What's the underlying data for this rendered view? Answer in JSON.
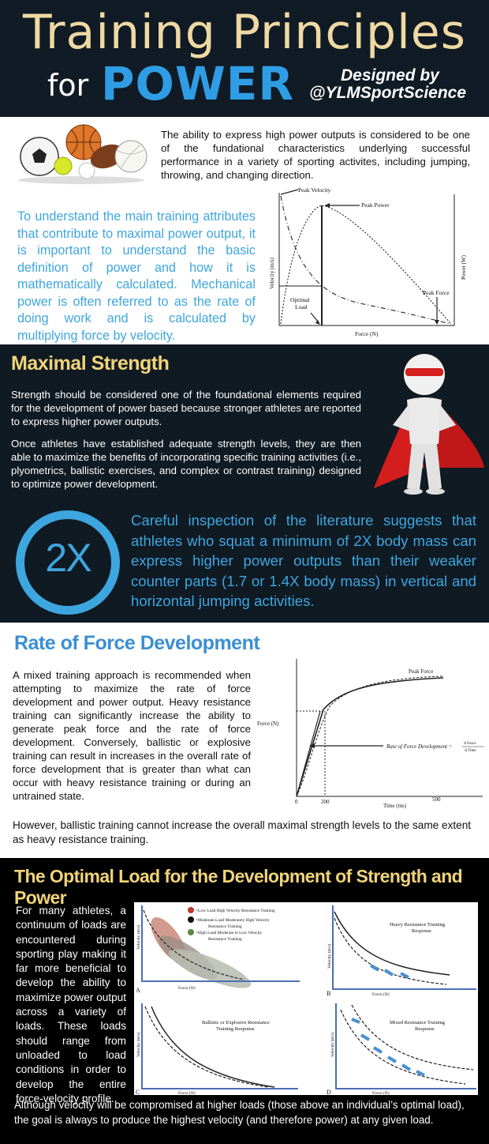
{
  "header": {
    "title_line1": "Training Principles",
    "title_for": "for",
    "title_power": "POWER",
    "designed_by": "Designed by",
    "handle": "@YLMSportScience"
  },
  "intro": {
    "text": "The ability to express high power outputs is considered to be one of the fundational characteristics underlying successful performance in a variety of sporting activites, including jumping, throwing, and changing direction.",
    "blue_text": "To understand the main training attributes that contribute to maximal power output, it is important to understand the basic definition of power and how it is mathematically calculated. Mechanical power is often referred to as the rate of doing work and is calculated by multiplying force by velocity.",
    "chart": {
      "peak_velocity": "Peak Velocity",
      "peak_power": "Peak Power",
      "peak_force": "Peak Force",
      "optimal_load_1": "Optimal",
      "optimal_load_2": "Load",
      "xlabel": "Force (N)",
      "ylabel_left": "Velocity (m/s)",
      "ylabel_right": "Power (W)"
    }
  },
  "strength": {
    "heading": "Maximal Strength",
    "p1": "Strength should be considered one of the foundational elements required for the development of power based because stronger athletes are reported to express higher power outputs.",
    "p2": "Once athletes have established adequate strength levels, they are then able to maximize the benefits of incorporating specific training activities (i.e., plyometrics, ballistic exercises, and complex or contrast training) designed to optimize power development.",
    "badge": "2X",
    "blue_text": "Careful inspection of the literature suggests that athletes who squat a minimum of 2X body mass can express higher power outputs than their weaker counter parts (1.7 or 1.4X body mass) in vertical and horizontal jumping activities."
  },
  "rfd": {
    "heading": "Rate of Force Development",
    "p1": "A mixed training approach is recommended when attempting to maximize the rate of force development and power output. Heavy resistance training can significantly increase the ability to generate peak force and the rate of force development. Conversely, ballistic or explosive training can result in increases in the overall rate of force development that is greater than what can occur with heavy resistance training or during an untrained state.",
    "p2": "However, ballistic training cannot increase the overall maximal strength levels to the same extent as heavy resistance training.",
    "chart": {
      "peak_force": "Peak Force",
      "ylabel": "Force (N)",
      "xlabel": "Time (ms)",
      "tick0": "0",
      "tick200": "200",
      "tick500": "500",
      "rfd_label": "Rate of Force Development =",
      "rfd_num": "Δ Force",
      "rfd_den": "Δ Time"
    }
  },
  "optimal": {
    "heading": "The Optimal Load for the Development of Strength and Power",
    "text": "For many athletes, a continuum of loads are encountered during sporting play making it far more beneficial to develop the ability to maximize power output across a variety of loads. These loads should range from unloaded to load conditions in order to develop the entire force-velocity profile.",
    "footer": "Although velocity will be compromised at higher loads (those above an individual’s optimal load), the goal is always to produce the highest velocity (and therefore power) at any given load.",
    "panels": {
      "legend_1": "=Low Load High Velocity Resistance Training",
      "legend_2a": "=Moderate Load Moderately High Velocity",
      "legend_2b": "Resistance Training",
      "legend_3a": "=High Load Moderate to Low Velocity",
      "legend_3b": "Resistance Training",
      "b_title_1": "Heavy Resistance Training",
      "b_title_2": "Response",
      "c_title_1": "Ballistic or Explosive Resistance",
      "c_title_2": "Training Response",
      "d_title_1": "Mixed Resistance Training",
      "d_title_2": "Response",
      "force_label": "Force (N)",
      "velocity_label": "Velocity (m/s)",
      "label_a": "A",
      "label_b": "B",
      "label_c": "C",
      "label_d": "D"
    }
  },
  "colors": {
    "dark_bg": "#0f1a23",
    "title_gold": "#efd9a3",
    "accent_blue": "#3ea6df",
    "heading_yellow": "#f0d37a"
  }
}
